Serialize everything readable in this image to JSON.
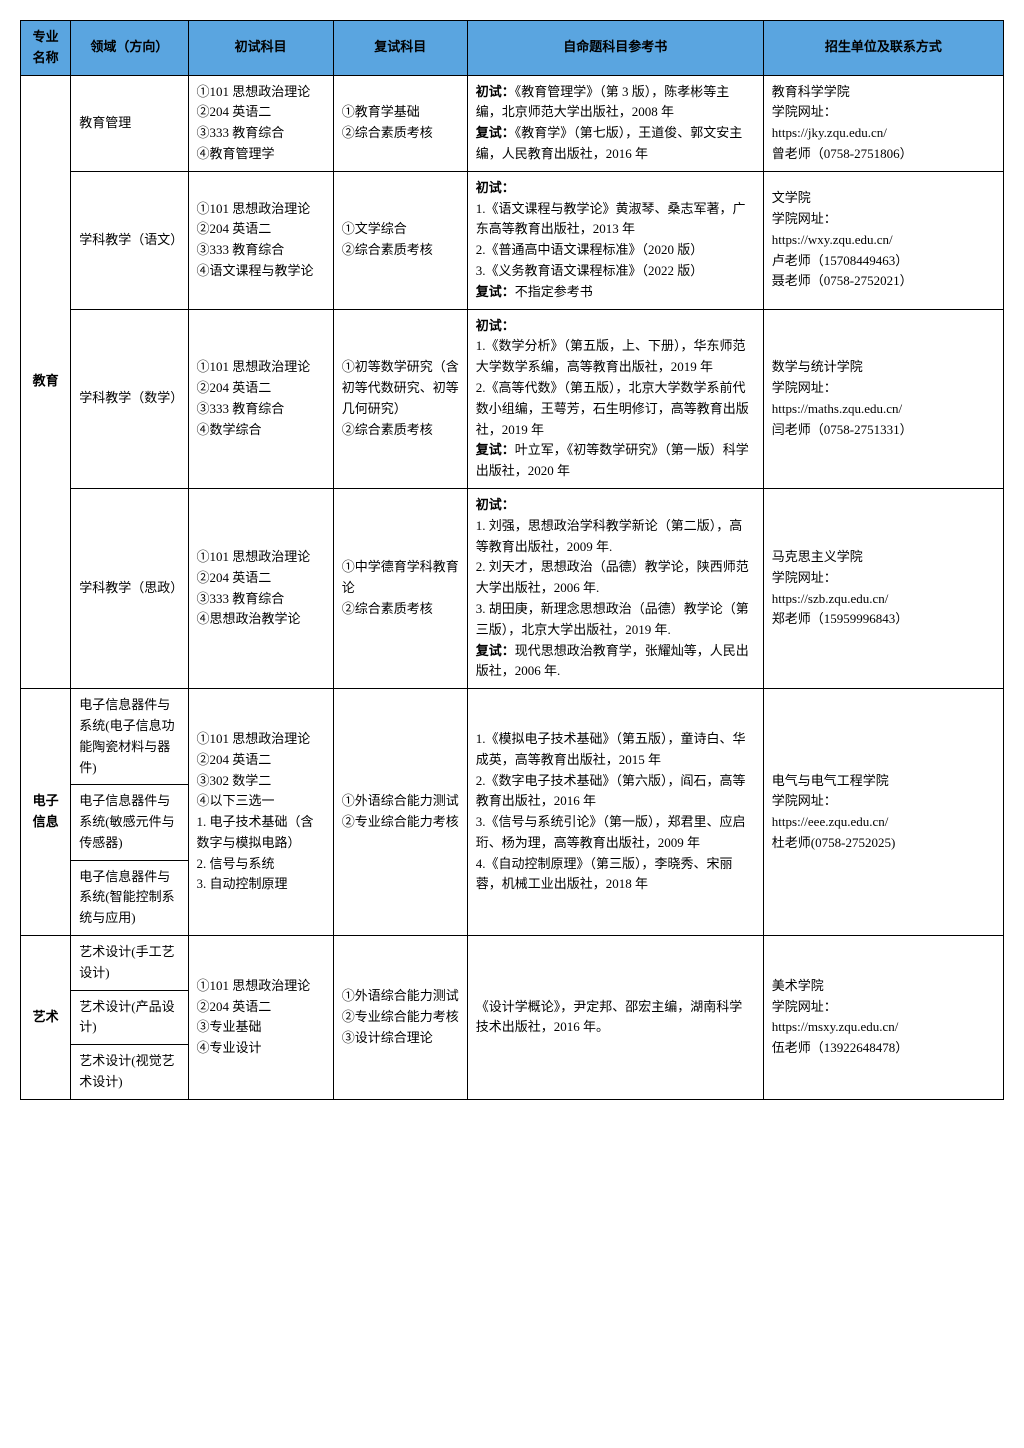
{
  "header": {
    "col1": "专业名称",
    "col2": "领域（方向）",
    "col3": "初试科目",
    "col4": "复试科目",
    "col5": "自命题科目参考书",
    "col6": "招生单位及联系方式"
  },
  "majors": {
    "edu": "教育",
    "ee": "电子信息",
    "art": "艺术"
  },
  "rows": {
    "r1": {
      "dir": "教育管理",
      "exam1": "①101 思想政治理论\n②204 英语二\n③333 教育综合\n④教育管理学",
      "exam2": "①教育学基础\n②综合素质考核",
      "ref_pre": "初试：",
      "ref_a": "《教育管理学》（第 3 版），陈孝彬等主编，北京师范大学出版社，2008 年",
      "ref_b_pre": "复试：",
      "ref_b": "《教育学》（第七版），王道俊、郭文安主编，人民教育出版社，2016 年",
      "contact": "教育科学学院\n学院网址：\nhttps://jky.zqu.edu.cn/\n曾老师（0758-2751806）"
    },
    "r2": {
      "dir": "学科教学（语文）",
      "exam1": "①101 思想政治理论\n②204 英语二\n③333 教育综合\n④语文课程与教学论",
      "exam2": "①文学综合\n②综合素质考核",
      "ref_pre": "初试：",
      "ref_a": "1.《语文课程与教学论》黄淑琴、桑志军著，广东高等教育出版社，2013 年\n2.《普通高中语文课程标准》（2020 版）\n3.《义务教育语文课程标准》（2022 版）",
      "ref_b_pre": "复试：",
      "ref_b": "不指定参考书",
      "contact": "文学院\n学院网址：\nhttps://wxy.zqu.edu.cn/\n卢老师（15708449463）\n聂老师（0758-2752021）"
    },
    "r3": {
      "dir": "学科教学（数学）",
      "exam1": "①101 思想政治理论\n②204 英语二\n③333 教育综合\n④数学综合",
      "exam2": "①初等数学研究（含初等代数研究、初等几何研究）\n②综合素质考核",
      "ref_pre": "初试：",
      "ref_a": "1.《数学分析》（第五版，上、下册），华东师范大学数学系编，高等教育出版社，2019 年\n2.《高等代数》（第五版），北京大学数学系前代数小组编，王萼芳，石生明修订，高等教育出版社，2019 年",
      "ref_b_pre": "复试：",
      "ref_b": "叶立军，《初等数学研究》（第一版）科学出版社，2020 年",
      "contact": "数学与统计学院\n学院网址：\nhttps://maths.zqu.edu.cn/\n闫老师（0758-2751331）"
    },
    "r4": {
      "dir": "学科教学（思政）",
      "exam1": "①101 思想政治理论\n②204 英语二\n③333 教育综合\n④思想政治教学论",
      "exam2": "①中学德育学科教育论\n②综合素质考核",
      "ref_pre": "初试：",
      "ref_a": "1. 刘强，思想政治学科教学新论（第二版），高等教育出版社，2009 年.\n2. 刘天才，思想政治（品德）教学论，陕西师范大学出版社，2006 年.\n3. 胡田庚，新理念思想政治（品德）教学论（第三版），北京大学出版社，2019 年.",
      "ref_b_pre": "复试：",
      "ref_b": "现代思想政治教育学，张耀灿等，人民出版社，2006 年.",
      "contact": "马克思主义学院\n学院网址：\nhttps://szb.zqu.edu.cn/\n郑老师（15959996843）"
    },
    "ee": {
      "dir1": "电子信息器件与系统(电子信息功能陶瓷材料与器件)",
      "dir2": "电子信息器件与系统(敏感元件与传感器)",
      "dir3": "电子信息器件与系统(智能控制系统与应用)",
      "exam1": "①101 思想政治理论\n②204 英语二\n③302 数学二\n④以下三选一\n1. 电子技术基础（含数字与模拟电路）\n2. 信号与系统\n3. 自动控制原理",
      "exam2": "①外语综合能力测试\n②专业综合能力考核",
      "ref": "1.《模拟电子技术基础》（第五版），童诗白、华成英，高等教育出版社，2015 年\n2.《数字电子技术基础》（第六版），阎石，高等教育出版社，2016 年\n3.《信号与系统引论》（第一版），郑君里、应启珩、杨为理，高等教育出版社，2009 年\n4.《自动控制原理》（第三版），李晓秀、宋丽蓉，机械工业出版社，2018 年",
      "contact": "电气与电气工程学院\n学院网址：\nhttps://eee.zqu.edu.cn/\n杜老师(0758-2752025)"
    },
    "art": {
      "dir1": "艺术设计(手工艺设计)",
      "dir2": "艺术设计(产品设计)",
      "dir3": "艺术设计(视觉艺术设计)",
      "exam1": "①101 思想政治理论\n②204 英语二\n③专业基础\n④专业设计",
      "exam2": "①外语综合能力测试\n②专业综合能力考核\n③设计综合理论",
      "ref": "《设计学概论》，尹定邦、邵宏主编，湖南科学技术出版社，2016 年。",
      "contact": "美术学院\n学院网址：\nhttps://msxy.zqu.edu.cn/\n伍老师（13922648478）"
    }
  },
  "styling": {
    "header_bg": "#5aa5e0",
    "border_color": "#000000",
    "font_size": 13,
    "line_height": 1.6
  }
}
